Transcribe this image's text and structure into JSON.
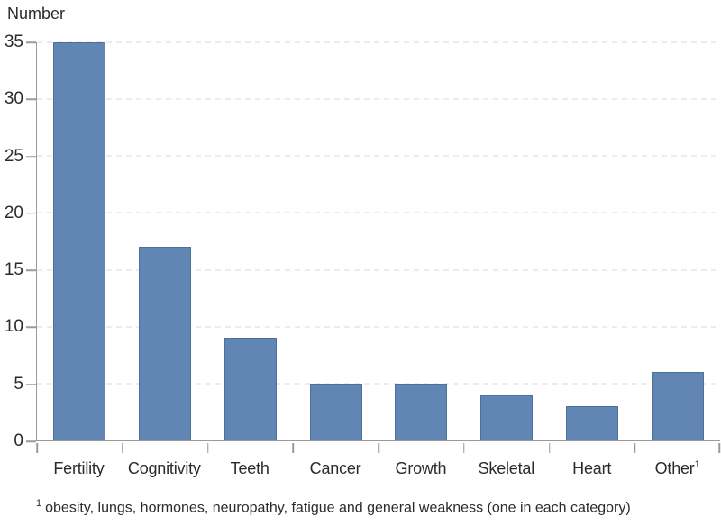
{
  "chart_data": {
    "type": "bar",
    "title": "Number",
    "ylabel": "Number",
    "xlabel": "",
    "categories": [
      {
        "label": "Fertility"
      },
      {
        "label": "Cognitivity"
      },
      {
        "label": "Teeth"
      },
      {
        "label": "Cancer"
      },
      {
        "label": "Growth"
      },
      {
        "label": "Skeletal"
      },
      {
        "label": "Heart"
      },
      {
        "label": "Other",
        "sup": "1"
      }
    ],
    "values": [
      35,
      17,
      9,
      5,
      5,
      4,
      3,
      6
    ],
    "ylim": [
      0,
      35
    ],
    "yticks": [
      0,
      5,
      10,
      15,
      20,
      25,
      30,
      35
    ],
    "grid": "horizontal-dashed",
    "legend": "none",
    "footnote": {
      "marker": "1",
      "text": "obesity, lungs, hormones, neuropathy, fatigue and general weakness (one in each category)"
    },
    "colors": {
      "bar_fill": "#6186b3",
      "bar_border": "#4d6f9b",
      "axis": "#9a9a9a",
      "gridline": "#d9d9d9",
      "text": "#2b2b2b"
    }
  }
}
